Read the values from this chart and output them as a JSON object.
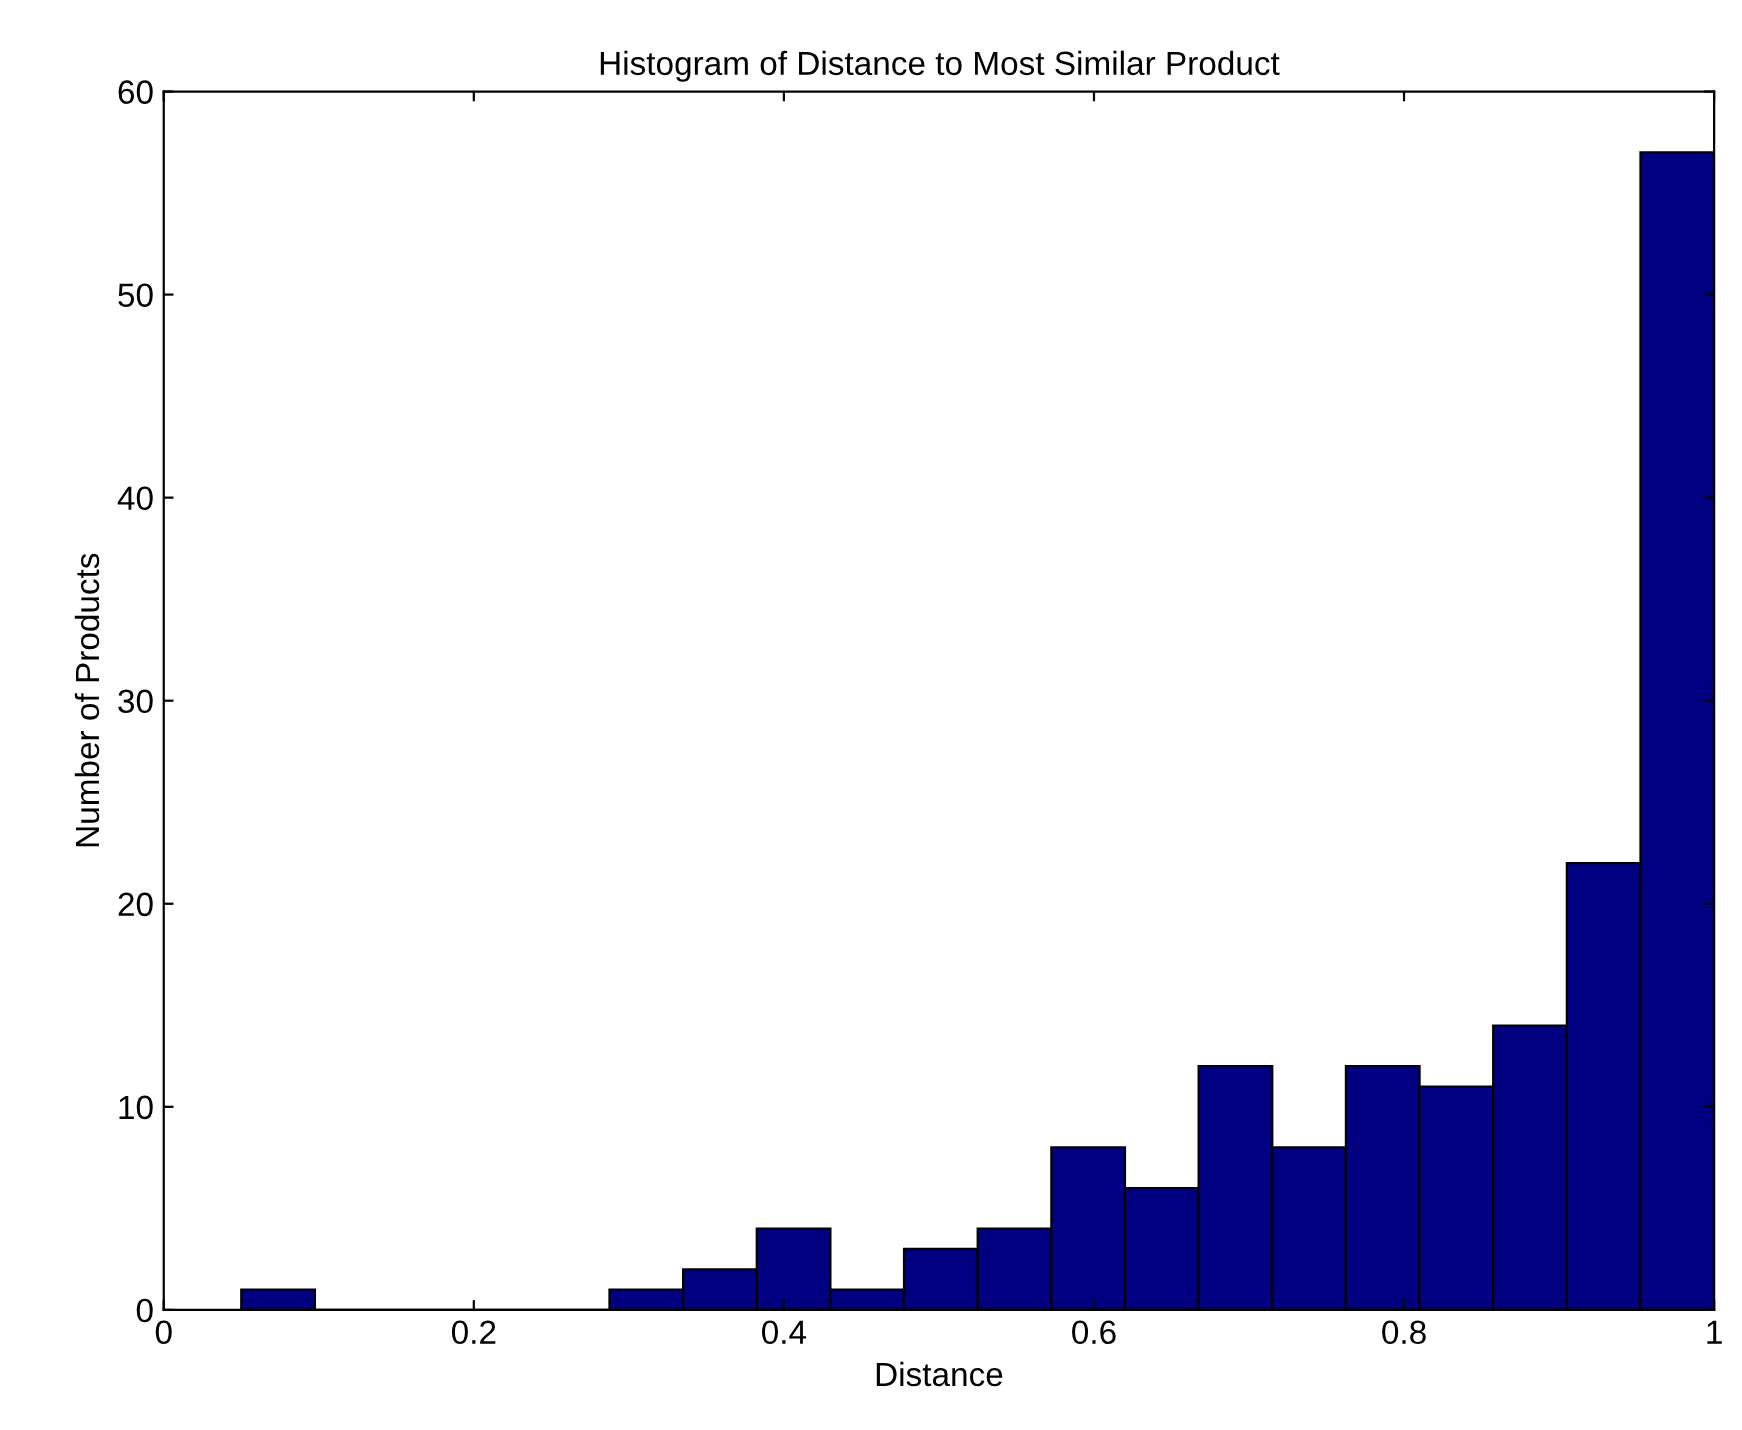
{
  "chart_data": {
    "type": "histogram",
    "title": "Histogram of Distance to Most Similar Product",
    "xlabel": "Distance",
    "ylabel": "Number of Products",
    "bins": [
      0.05,
      0.0975,
      0.145,
      0.1925,
      0.24,
      0.2875,
      0.335,
      0.3825,
      0.43,
      0.4775,
      0.525,
      0.5725,
      0.62,
      0.6675,
      0.715,
      0.7625,
      0.81,
      0.8575,
      0.905,
      0.9525,
      1.0
    ],
    "values": [
      1,
      0,
      0,
      0,
      0,
      1,
      2,
      4,
      1,
      3,
      4,
      8,
      6,
      12,
      8,
      12,
      11,
      14,
      22,
      57
    ],
    "color": "#000080",
    "xlim": [
      0,
      1
    ],
    "ylim": [
      0,
      60
    ],
    "xticks": [
      0,
      0.2,
      0.4,
      0.6,
      0.8,
      1
    ],
    "yticks": [
      0,
      10,
      20,
      30,
      40,
      50,
      60
    ],
    "grid": false
  }
}
